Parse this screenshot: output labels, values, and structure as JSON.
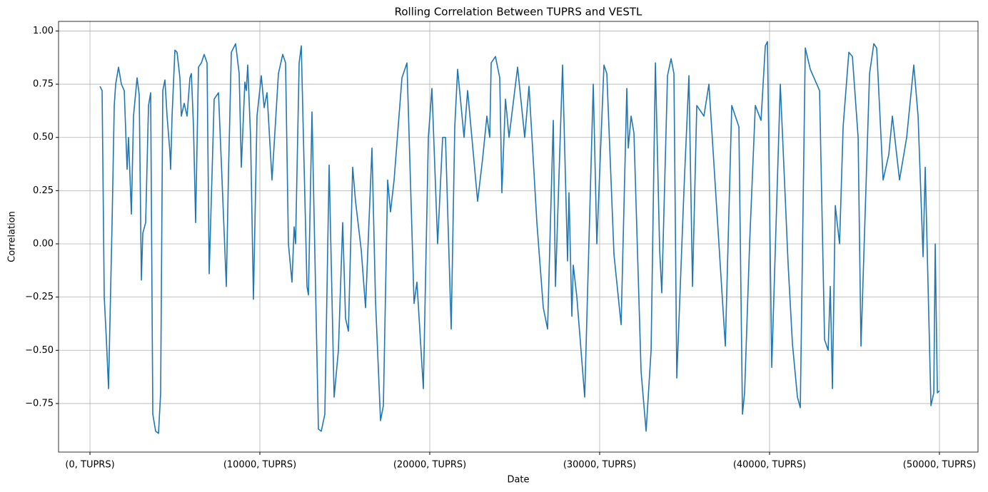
{
  "chart_data": {
    "type": "line",
    "title": "Rolling Correlation Between TUPRS and VESTL",
    "xlabel": "Date",
    "ylabel": "Correlation",
    "xlim": [
      -1850,
      52270
    ],
    "ylim": [
      -0.978,
      1.045
    ],
    "xticks": [
      {
        "value": 0,
        "label": "(0, TUPRS)"
      },
      {
        "value": 10000,
        "label": "(10000, TUPRS)"
      },
      {
        "value": 20000,
        "label": "(20000, TUPRS)"
      },
      {
        "value": 30000,
        "label": "(30000, TUPRS)"
      },
      {
        "value": 40000,
        "label": "(40000, TUPRS)"
      },
      {
        "value": 50000,
        "label": "(50000, TUPRS)"
      }
    ],
    "yticks": [
      {
        "value": -0.75,
        "label": "−0.75"
      },
      {
        "value": -0.5,
        "label": "−0.50"
      },
      {
        "value": -0.25,
        "label": "−0.25"
      },
      {
        "value": 0,
        "label": "0.00"
      },
      {
        "value": 0.25,
        "label": "0.25"
      },
      {
        "value": 0.5,
        "label": "0.50"
      },
      {
        "value": 0.75,
        "label": "0.75"
      },
      {
        "value": 1,
        "label": "1.00"
      }
    ],
    "grid": true,
    "series": [
      {
        "color": "#1f77b4",
        "x": [
          588,
          714,
          840,
          966,
          1092,
          1302,
          1429,
          1513,
          1681,
          1849,
          2017,
          2185,
          2269,
          2437,
          2563,
          2773,
          2899,
          3025,
          3109,
          3278,
          3446,
          3572,
          3698,
          3866,
          4034,
          4160,
          4286,
          4412,
          4538,
          4706,
          4748,
          4832,
          5000,
          5126,
          5294,
          5378,
          5546,
          5715,
          5883,
          5967,
          6093,
          6219,
          6387,
          6555,
          6723,
          6891,
          7017,
          7311,
          7564,
          7774,
          8026,
          8152,
          8320,
          8572,
          8782,
          8908,
          9118,
          9202,
          9286,
          9454,
          9622,
          9832,
          10084,
          10253,
          10421,
          10715,
          11093,
          11345,
          11513,
          11681,
          11891,
          12017,
          12102,
          12312,
          12438,
          12564,
          12774,
          12858,
          13068,
          13446,
          13614,
          13825,
          14077,
          14371,
          14623,
          14875,
          15043,
          15211,
          15463,
          15631,
          15968,
          16220,
          16598,
          16808,
          17102,
          17270,
          17522,
          17690,
          17901,
          18363,
          18657,
          19077,
          19245,
          19623,
          19917,
          20128,
          20464,
          20758,
          20926,
          21262,
          21472,
          21640,
          22018,
          22229,
          22817,
          23111,
          23363,
          23531,
          23615,
          23867,
          24119,
          24245,
          24456,
          24666,
          25170,
          25590,
          25842,
          26305,
          26683,
          26935,
          27103,
          27271,
          27397,
          27817,
          28111,
          28195,
          28364,
          28448,
          28658,
          29120,
          29624,
          29834,
          30254,
          30422,
          30843,
          31263,
          31599,
          31683,
          31851,
          32019,
          32439,
          32734,
          33028,
          33280,
          33532,
          33658,
          33994,
          34204,
          34372,
          34540,
          34961,
          35255,
          35465,
          35717,
          36137,
          36431,
          37398,
          37776,
          38196,
          38406,
          38532,
          38826,
          39163,
          39499,
          39751,
          39877,
          40129,
          40633,
          41096,
          41348,
          41642,
          41810,
          42104,
          42398,
          42944,
          43239,
          43449,
          43575,
          43701,
          43869,
          44121,
          44331,
          44667,
          44877,
          45214,
          45382,
          45886,
          46138,
          46306,
          46684,
          47020,
          47230,
          47650,
          48071,
          48491,
          48743,
          49037,
          49163,
          49500,
          49668,
          49752,
          49878,
          50000
        ],
        "values": [
          0.74,
          0.72,
          -0.25,
          -0.45,
          -0.68,
          0.1,
          0.65,
          0.75,
          0.83,
          0.75,
          0.72,
          0.35,
          0.5,
          0.14,
          0.6,
          0.78,
          0.7,
          -0.17,
          0.05,
          0.1,
          0.65,
          0.71,
          -0.8,
          -0.88,
          -0.89,
          -0.7,
          0.72,
          0.77,
          0.6,
          0.43,
          0.35,
          0.6,
          0.91,
          0.9,
          0.78,
          0.6,
          0.66,
          0.6,
          0.78,
          0.8,
          0.55,
          0.1,
          0.83,
          0.85,
          0.89,
          0.85,
          -0.14,
          0.68,
          0.71,
          0.3,
          -0.2,
          0.33,
          0.9,
          0.94,
          0.8,
          0.36,
          0.76,
          0.72,
          0.84,
          0.5,
          -0.26,
          0.6,
          0.79,
          0.64,
          0.71,
          0.3,
          0.8,
          0.89,
          0.85,
          0.0,
          -0.18,
          0.08,
          0.0,
          0.85,
          0.93,
          0.5,
          -0.2,
          -0.24,
          0.62,
          -0.87,
          -0.88,
          -0.8,
          0.37,
          -0.72,
          -0.5,
          0.1,
          -0.35,
          -0.41,
          0.36,
          0.2,
          -0.03,
          -0.3,
          0.45,
          -0.27,
          -0.83,
          -0.76,
          0.3,
          0.15,
          0.3,
          0.78,
          0.85,
          -0.28,
          -0.18,
          -0.68,
          0.5,
          0.73,
          0.0,
          0.5,
          0.5,
          -0.4,
          0.55,
          0.82,
          0.5,
          0.72,
          0.2,
          0.4,
          0.6,
          0.5,
          0.85,
          0.88,
          0.78,
          0.24,
          0.68,
          0.5,
          0.83,
          0.5,
          0.74,
          0.1,
          -0.3,
          -0.4,
          0.1,
          0.58,
          -0.2,
          0.84,
          -0.08,
          0.24,
          -0.34,
          -0.1,
          -0.25,
          -0.72,
          0.75,
          0.0,
          0.84,
          0.8,
          -0.05,
          -0.38,
          0.73,
          0.45,
          0.6,
          0.52,
          -0.6,
          -0.88,
          -0.5,
          0.85,
          -0.03,
          -0.23,
          0.79,
          0.87,
          0.8,
          -0.63,
          0.25,
          0.79,
          -0.2,
          0.65,
          0.6,
          0.75,
          -0.48,
          0.65,
          0.55,
          -0.8,
          -0.7,
          0.0,
          0.65,
          0.58,
          0.93,
          0.95,
          -0.58,
          0.75,
          -0.1,
          -0.47,
          -0.72,
          -0.77,
          0.92,
          0.82,
          0.72,
          -0.45,
          -0.5,
          -0.2,
          -0.68,
          0.18,
          0.0,
          0.55,
          0.9,
          0.88,
          0.5,
          -0.48,
          0.8,
          0.94,
          0.92,
          0.3,
          0.42,
          0.6,
          0.3,
          0.5,
          0.84,
          0.6,
          -0.06,
          0.36,
          -0.76,
          -0.7,
          0.0,
          -0.7,
          -0.69
        ]
      }
    ]
  }
}
